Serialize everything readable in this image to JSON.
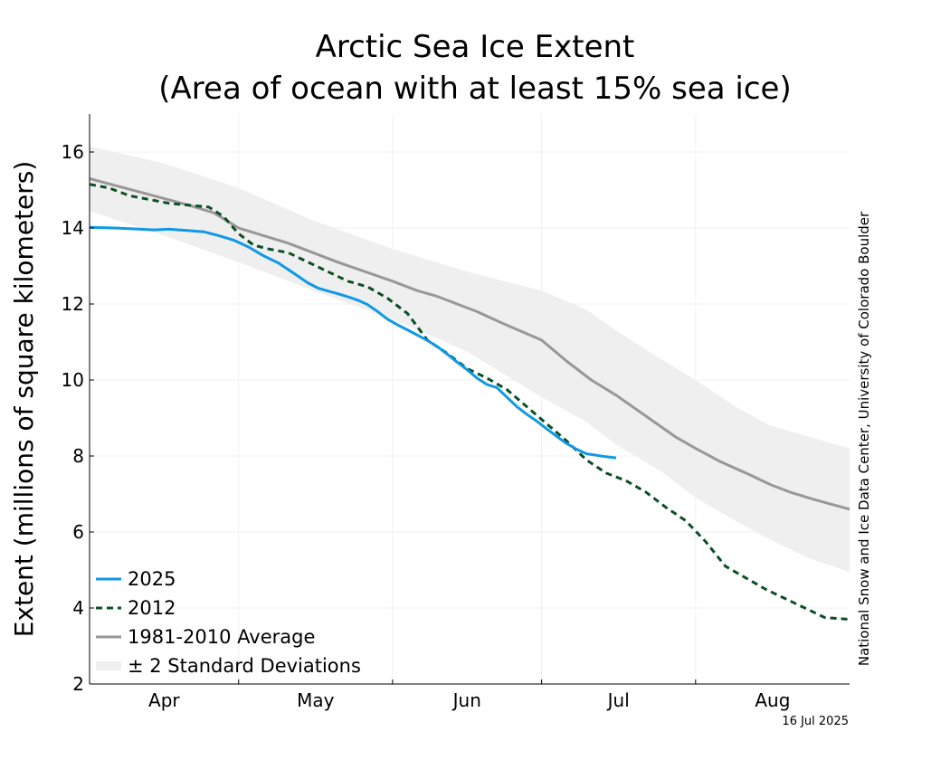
{
  "chart_data": {
    "type": "line",
    "title": [
      "Arctic Sea Ice Extent",
      "(Area of ocean with at least 15% sea ice)"
    ],
    "ylabel": "Extent (millions of square kilometers)",
    "xlabel": "",
    "ylim": [
      2,
      17
    ],
    "yticks": [
      2,
      4,
      6,
      8,
      10,
      12,
      14,
      16
    ],
    "xlim": [
      0,
      153
    ],
    "month_boundaries": [
      30,
      61,
      91,
      122
    ],
    "month_labels": [
      {
        "label": "Apr",
        "center": 15
      },
      {
        "label": "May",
        "center": 45.5
      },
      {
        "label": "Jun",
        "center": 76
      },
      {
        "label": "Jul",
        "center": 106.5
      },
      {
        "label": "Aug",
        "center": 137.5
      }
    ],
    "grid": true,
    "legend_position": "bottom-left",
    "source_text": "National Snow and Ice Data Center, University of Colorado Boulder",
    "date_label": "16 Jul 2025",
    "band": {
      "name": "± 2 Standard Deviations",
      "color": "#efefef",
      "x": [
        0,
        15,
        30,
        45,
        61,
        76,
        91,
        100,
        106,
        115,
        122,
        130,
        137,
        145,
        153
      ],
      "upper": [
        16.15,
        15.7,
        15.05,
        14.2,
        13.45,
        12.85,
        12.35,
        11.85,
        11.3,
        10.55,
        10.0,
        9.3,
        8.8,
        8.5,
        8.2
      ],
      "lower": [
        14.45,
        13.8,
        13.1,
        12.35,
        11.6,
        10.75,
        9.55,
        8.9,
        8.3,
        7.6,
        6.9,
        6.3,
        5.8,
        5.3,
        4.95
      ]
    },
    "series": [
      {
        "name": "2025",
        "color": "#0f99e6",
        "dash": "",
        "x": [
          0,
          5,
          10,
          13,
          16,
          18,
          20,
          23,
          26,
          29,
          32,
          35,
          38,
          41,
          44,
          46,
          48,
          50,
          52,
          54,
          56,
          58,
          60,
          62,
          64,
          66,
          68,
          70,
          72,
          74,
          76,
          78,
          80,
          82,
          84,
          86,
          88,
          90,
          92,
          94,
          96,
          98,
          100,
          102,
          104,
          106
        ],
        "y": [
          14.02,
          14.0,
          13.97,
          13.95,
          13.97,
          13.95,
          13.93,
          13.9,
          13.8,
          13.68,
          13.5,
          13.27,
          13.08,
          12.82,
          12.55,
          12.42,
          12.34,
          12.27,
          12.19,
          12.1,
          11.98,
          11.8,
          11.6,
          11.45,
          11.32,
          11.18,
          11.04,
          10.88,
          10.68,
          10.47,
          10.27,
          10.05,
          9.88,
          9.8,
          9.55,
          9.3,
          9.1,
          8.92,
          8.72,
          8.52,
          8.33,
          8.18,
          8.06,
          8.02,
          7.98,
          7.95
        ]
      },
      {
        "name": "2012",
        "color": "#0b4f26",
        "dash": "7,5",
        "x": [
          0,
          4,
          8,
          12,
          16,
          20,
          24,
          27,
          30,
          33,
          36,
          40,
          44,
          48,
          52,
          56,
          60,
          64,
          68,
          72,
          76,
          80,
          84,
          88,
          92,
          96,
          100,
          104,
          108,
          112,
          116,
          120,
          124,
          128,
          132,
          136,
          140,
          144,
          148,
          153
        ],
        "y": [
          15.15,
          15.05,
          14.85,
          14.75,
          14.65,
          14.6,
          14.55,
          14.3,
          13.85,
          13.55,
          13.45,
          13.35,
          13.1,
          12.85,
          12.6,
          12.45,
          12.15,
          11.75,
          11.05,
          10.7,
          10.3,
          10.05,
          9.75,
          9.3,
          8.85,
          8.4,
          7.9,
          7.55,
          7.35,
          7.05,
          6.65,
          6.3,
          5.75,
          5.1,
          4.8,
          4.5,
          4.25,
          4.0,
          3.75,
          3.7
        ]
      },
      {
        "name": "1981-2010 Average",
        "color": "#989898",
        "dash": "",
        "x": [
          0,
          10,
          20,
          25,
          30,
          35,
          40,
          50,
          61,
          66,
          70,
          78,
          83,
          91,
          96,
          101,
          106,
          112,
          118,
          122,
          127,
          133,
          137,
          141,
          146,
          153
        ],
        "y": [
          15.3,
          14.95,
          14.6,
          14.4,
          14.0,
          13.8,
          13.6,
          13.1,
          12.6,
          12.35,
          12.2,
          11.8,
          11.5,
          11.05,
          10.5,
          10.0,
          9.6,
          9.05,
          8.5,
          8.2,
          7.85,
          7.5,
          7.25,
          7.05,
          6.85,
          6.6
        ]
      }
    ]
  }
}
